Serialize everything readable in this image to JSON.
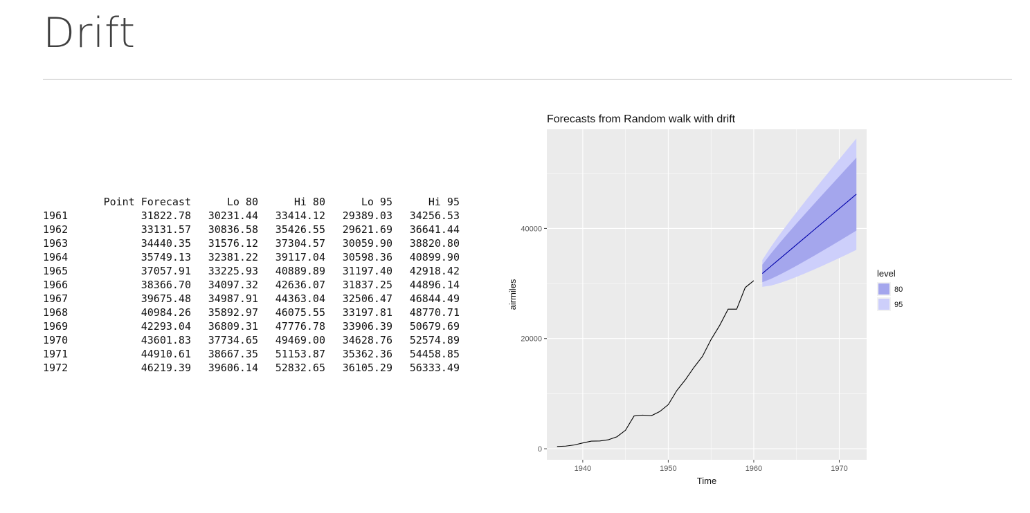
{
  "slide": {
    "title": "Drift"
  },
  "table": {
    "columns": [
      "",
      "Point Forecast",
      "Lo 80",
      "Hi 80",
      "Lo 95",
      "Hi 95"
    ],
    "rows": [
      {
        "year": "1961",
        "values": [
          "31822.78",
          "30231.44",
          "33414.12",
          "29389.03",
          "34256.53"
        ]
      },
      {
        "year": "1962",
        "values": [
          "33131.57",
          "30836.58",
          "35426.55",
          "29621.69",
          "36641.44"
        ]
      },
      {
        "year": "1963",
        "values": [
          "34440.35",
          "31576.12",
          "37304.57",
          "30059.90",
          "38820.80"
        ]
      },
      {
        "year": "1964",
        "values": [
          "35749.13",
          "32381.22",
          "39117.04",
          "30598.36",
          "40899.90"
        ]
      },
      {
        "year": "1965",
        "values": [
          "37057.91",
          "33225.93",
          "40889.89",
          "31197.40",
          "42918.42"
        ]
      },
      {
        "year": "1966",
        "values": [
          "38366.70",
          "34097.32",
          "42636.07",
          "31837.25",
          "44896.14"
        ]
      },
      {
        "year": "1967",
        "values": [
          "39675.48",
          "34987.91",
          "44363.04",
          "32506.47",
          "46844.49"
        ]
      },
      {
        "year": "1968",
        "values": [
          "40984.26",
          "35892.97",
          "46075.55",
          "33197.81",
          "48770.71"
        ]
      },
      {
        "year": "1969",
        "values": [
          "42293.04",
          "36809.31",
          "47776.78",
          "33906.39",
          "50679.69"
        ]
      },
      {
        "year": "1970",
        "values": [
          "43601.83",
          "37734.65",
          "49469.00",
          "34628.76",
          "52574.89"
        ]
      },
      {
        "year": "1971",
        "values": [
          "44910.61",
          "38667.35",
          "51153.87",
          "35362.36",
          "54458.85"
        ]
      },
      {
        "year": "1972",
        "values": [
          "46219.39",
          "39606.14",
          "52832.65",
          "36105.29",
          "56333.49"
        ]
      }
    ]
  },
  "chart_data": {
    "type": "line",
    "title": "Forecasts from Random walk with drift",
    "xlabel": "Time",
    "ylabel": "airmiles",
    "xlim": [
      1935.8,
      1973.2
    ],
    "ylim": [
      -2000,
      58000
    ],
    "x_ticks": [
      1940,
      1950,
      1960,
      1970
    ],
    "y_ticks": [
      0,
      20000,
      40000
    ],
    "grid": true,
    "legend_title": "level",
    "legend_position": "right",
    "colors": {
      "panel_bg": "#ebebeb",
      "grid": "#ffffff",
      "history_line": "#000000",
      "forecast_line": "#0000aa",
      "band_80": "#a4a6ed",
      "band_95": "#cdcffb"
    },
    "history": {
      "x": [
        1937,
        1938,
        1939,
        1940,
        1941,
        1942,
        1943,
        1944,
        1945,
        1946,
        1947,
        1948,
        1949,
        1950,
        1951,
        1952,
        1953,
        1954,
        1955,
        1956,
        1957,
        1958,
        1959,
        1960
      ],
      "y": [
        412,
        480,
        683,
        1052,
        1385,
        1418,
        1634,
        2178,
        3362,
        5948,
        6109,
        5981,
        6753,
        8003,
        10566,
        12528,
        14760,
        16769,
        19819,
        22362,
        25340,
        25343,
        29269,
        30514
      ]
    },
    "forecast": {
      "x": [
        1961,
        1962,
        1963,
        1964,
        1965,
        1966,
        1967,
        1968,
        1969,
        1970,
        1971,
        1972
      ],
      "point": [
        31822.78,
        33131.57,
        34440.35,
        35749.13,
        37057.91,
        38366.7,
        39675.48,
        40984.26,
        42293.04,
        43601.83,
        44910.61,
        46219.39
      ],
      "lo80": [
        30231.44,
        30836.58,
        31576.12,
        32381.22,
        33225.93,
        34097.32,
        34987.91,
        35892.97,
        36809.31,
        37734.65,
        38667.35,
        39606.14
      ],
      "hi80": [
        33414.12,
        35426.55,
        37304.57,
        39117.04,
        40889.89,
        42636.07,
        44363.04,
        46075.55,
        47776.78,
        49469.0,
        51153.87,
        52832.65
      ],
      "lo95": [
        29389.03,
        29621.69,
        30059.9,
        30598.36,
        31197.4,
        31837.25,
        32506.47,
        33197.81,
        33906.39,
        34628.76,
        35362.36,
        36105.29
      ],
      "hi95": [
        34256.53,
        36641.44,
        38820.8,
        40899.9,
        42918.42,
        44896.14,
        46844.49,
        48770.71,
        50679.69,
        52574.89,
        54458.85,
        56333.49
      ]
    },
    "legend": [
      {
        "label": "80",
        "color": "#a4a6ed"
      },
      {
        "label": "95",
        "color": "#cdcffb"
      }
    ]
  }
}
